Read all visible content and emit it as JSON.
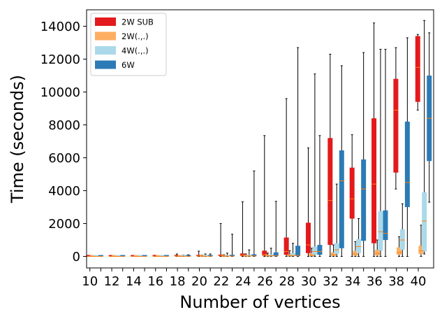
{
  "chart_data": {
    "type": "boxplot",
    "title": "",
    "xlabel": "Number of vertices",
    "ylabel": "Time (seconds)",
    "ylim": [
      -700,
      15000
    ],
    "yticks": [
      0,
      2000,
      4000,
      6000,
      8000,
      10000,
      12000,
      14000
    ],
    "categories": [
      10,
      11,
      12,
      13,
      14,
      15,
      16,
      17,
      18,
      19,
      20,
      21,
      22,
      23,
      24,
      25,
      26,
      27,
      28,
      29,
      30,
      31,
      32,
      33,
      34,
      35,
      36,
      37,
      38,
      39,
      40
    ],
    "xtick_labels": [
      "10",
      "12",
      "14",
      "16",
      "18",
      "20",
      "22",
      "24",
      "26",
      "28",
      "30",
      "32",
      "34",
      "36",
      "38",
      "40"
    ],
    "legend": {
      "position": "top-left",
      "entries": [
        "2W SUB",
        "2W(.,.)",
        "4W(.,.)",
        "6W"
      ]
    },
    "series": [
      {
        "name": "2W SUB",
        "color": "#e31a1c",
        "median_color": "#ff7f0e",
        "boxes": [
          {
            "x": 10,
            "min": 0,
            "q1": 0,
            "median": 0,
            "q3": 5,
            "max": 10
          },
          {
            "x": 12,
            "min": 0,
            "q1": 0,
            "median": 1,
            "q3": 8,
            "max": 15
          },
          {
            "x": 14,
            "min": 0,
            "q1": 1,
            "median": 3,
            "q3": 12,
            "max": 25
          },
          {
            "x": 16,
            "min": 0,
            "q1": 2,
            "median": 8,
            "q3": 25,
            "max": 70
          },
          {
            "x": 18,
            "min": 0,
            "q1": 5,
            "median": 15,
            "q3": 50,
            "max": 150
          },
          {
            "x": 20,
            "min": 0,
            "q1": 10,
            "median": 30,
            "q3": 90,
            "max": 320
          },
          {
            "x": 22,
            "min": 0,
            "q1": 20,
            "median": 50,
            "q3": 110,
            "max": 2000
          },
          {
            "x": 24,
            "min": 0,
            "q1": 30,
            "median": 80,
            "q3": 180,
            "max": 3320
          },
          {
            "x": 26,
            "min": 0,
            "q1": 50,
            "median": 120,
            "q3": 350,
            "max": 7350
          },
          {
            "x": 28,
            "min": 0,
            "q1": 100,
            "median": 300,
            "q3": 1150,
            "max": 9600
          },
          {
            "x": 30,
            "min": 0,
            "q1": 200,
            "median": 700,
            "q3": 2050,
            "max": 6600
          },
          {
            "x": 32,
            "min": 0,
            "q1": 700,
            "median": 3400,
            "q3": 7200,
            "max": 12300
          },
          {
            "x": 34,
            "min": 0,
            "q1": 2300,
            "median": 3500,
            "q3": 5400,
            "max": 7400
          },
          {
            "x": 36,
            "min": 0,
            "q1": 800,
            "median": 4400,
            "q3": 8400,
            "max": 14200
          },
          {
            "x": 38,
            "min": 4100,
            "q1": 5100,
            "median": 8900,
            "q3": 10800,
            "max": 12700
          },
          {
            "x": 40,
            "min": 8900,
            "q1": 9400,
            "median": 11500,
            "q3": 13400,
            "max": 13500
          }
        ]
      },
      {
        "name": "2W(.,.)",
        "color": "#fdae61",
        "median_color": "#ff7f0e",
        "boxes": [
          {
            "x": 10,
            "min": 0,
            "q1": 0,
            "median": 0,
            "q3": 2,
            "max": 5
          },
          {
            "x": 12,
            "min": 0,
            "q1": 0,
            "median": 0,
            "q3": 3,
            "max": 6
          },
          {
            "x": 14,
            "min": 0,
            "q1": 0,
            "median": 1,
            "q3": 5,
            "max": 10
          },
          {
            "x": 16,
            "min": 0,
            "q1": 0,
            "median": 2,
            "q3": 10,
            "max": 20
          },
          {
            "x": 18,
            "min": 0,
            "q1": 1,
            "median": 5,
            "q3": 20,
            "max": 50
          },
          {
            "x": 20,
            "min": 0,
            "q1": 2,
            "median": 10,
            "q3": 30,
            "max": 80
          },
          {
            "x": 22,
            "min": 0,
            "q1": 3,
            "median": 12,
            "q3": 40,
            "max": 100
          },
          {
            "x": 24,
            "min": 0,
            "q1": 5,
            "median": 20,
            "q3": 60,
            "max": 150
          },
          {
            "x": 26,
            "min": 0,
            "q1": 5,
            "median": 25,
            "q3": 80,
            "max": 200
          },
          {
            "x": 28,
            "min": 0,
            "q1": 10,
            "median": 40,
            "q3": 120,
            "max": 350
          },
          {
            "x": 30,
            "min": 0,
            "q1": 20,
            "median": 80,
            "q3": 200,
            "max": 500
          },
          {
            "x": 32,
            "min": 0,
            "q1": 30,
            "median": 100,
            "q3": 250,
            "max": 700
          },
          {
            "x": 34,
            "min": 0,
            "q1": 50,
            "median": 150,
            "q3": 350,
            "max": 900
          },
          {
            "x": 36,
            "min": 0,
            "q1": 60,
            "median": 180,
            "q3": 400,
            "max": 1000
          },
          {
            "x": 38,
            "min": 0,
            "q1": 100,
            "median": 250,
            "q3": 550,
            "max": 1200
          },
          {
            "x": 40,
            "min": 0,
            "q1": 150,
            "median": 350,
            "q3": 650,
            "max": 1900
          }
        ]
      },
      {
        "name": "4W(.,.)",
        "color": "#abd9e9",
        "median_color": "#ff7f0e",
        "boxes": [
          {
            "x": 10,
            "min": 0,
            "q1": 0,
            "median": 1,
            "q3": 3,
            "max": 8
          },
          {
            "x": 12,
            "min": 0,
            "q1": 0,
            "median": 1,
            "q3": 4,
            "max": 10
          },
          {
            "x": 14,
            "min": 0,
            "q1": 0,
            "median": 2,
            "q3": 6,
            "max": 15
          },
          {
            "x": 16,
            "min": 0,
            "q1": 1,
            "median": 4,
            "q3": 12,
            "max": 30
          },
          {
            "x": 18,
            "min": 0,
            "q1": 2,
            "median": 8,
            "q3": 25,
            "max": 80
          },
          {
            "x": 20,
            "min": 0,
            "q1": 3,
            "median": 12,
            "q3": 40,
            "max": 150
          },
          {
            "x": 22,
            "min": 0,
            "q1": 5,
            "median": 20,
            "q3": 60,
            "max": 200
          },
          {
            "x": 24,
            "min": 0,
            "q1": 8,
            "median": 30,
            "q3": 90,
            "max": 400
          },
          {
            "x": 26,
            "min": 0,
            "q1": 10,
            "median": 40,
            "q3": 120,
            "max": 500
          },
          {
            "x": 28,
            "min": 0,
            "q1": 20,
            "median": 60,
            "q3": 200,
            "max": 800
          },
          {
            "x": 30,
            "min": 0,
            "q1": 100,
            "median": 300,
            "q3": 600,
            "max": 11100
          },
          {
            "x": 32,
            "min": 0,
            "q1": 150,
            "median": 400,
            "q3": 800,
            "max": 4400
          },
          {
            "x": 34,
            "min": 0,
            "q1": 200,
            "median": 600,
            "q3": 1050,
            "max": 2300
          },
          {
            "x": 36,
            "min": 0,
            "q1": 350,
            "median": 1500,
            "q3": 2750,
            "max": 12600
          },
          {
            "x": 38,
            "min": 0,
            "q1": 400,
            "median": 1000,
            "q3": 1650,
            "max": 3200
          },
          {
            "x": 40,
            "min": 150,
            "q1": 300,
            "median": 2150,
            "q3": 3900,
            "max": 14350
          }
        ]
      },
      {
        "name": "6W",
        "color": "#2c7bb6",
        "median_color": "#ff7f0e",
        "boxes": [
          {
            "x": 11,
            "min": 0,
            "q1": 0,
            "median": 1,
            "q3": 3,
            "max": 8
          },
          {
            "x": 13,
            "min": 0,
            "q1": 0,
            "median": 1,
            "q3": 4,
            "max": 10
          },
          {
            "x": 15,
            "min": 0,
            "q1": 0,
            "median": 2,
            "q3": 6,
            "max": 15
          },
          {
            "x": 17,
            "min": 0,
            "q1": 1,
            "median": 4,
            "q3": 12,
            "max": 30
          },
          {
            "x": 19,
            "min": 0,
            "q1": 2,
            "median": 8,
            "q3": 50,
            "max": 100
          },
          {
            "x": 21,
            "min": 0,
            "q1": 3,
            "median": 12,
            "q3": 50,
            "max": 150
          },
          {
            "x": 23,
            "min": 0,
            "q1": 5,
            "median": 20,
            "q3": 100,
            "max": 1350
          },
          {
            "x": 25,
            "min": 0,
            "q1": 8,
            "median": 30,
            "q3": 130,
            "max": 5200
          },
          {
            "x": 27,
            "min": 0,
            "q1": 10,
            "median": 40,
            "q3": 250,
            "max": 3350
          },
          {
            "x": 29,
            "min": 0,
            "q1": 20,
            "median": 60,
            "q3": 650,
            "max": 12700
          },
          {
            "x": 31,
            "min": 0,
            "q1": 100,
            "median": 300,
            "q3": 700,
            "max": 7350
          },
          {
            "x": 33,
            "min": 0,
            "q1": 500,
            "median": 4600,
            "q3": 6450,
            "max": 11600
          },
          {
            "x": 35,
            "min": 0,
            "q1": 950,
            "median": 4100,
            "q3": 5900,
            "max": 12400
          },
          {
            "x": 37,
            "min": 0,
            "q1": 1000,
            "median": 1400,
            "q3": 2800,
            "max": 12600
          },
          {
            "x": 39,
            "min": 0,
            "q1": 3000,
            "median": 4500,
            "q3": 8200,
            "max": 13300
          },
          {
            "x": 41,
            "min": 3300,
            "q1": 5800,
            "median": 8400,
            "q3": 11000,
            "max": 13600
          }
        ]
      }
    ]
  }
}
